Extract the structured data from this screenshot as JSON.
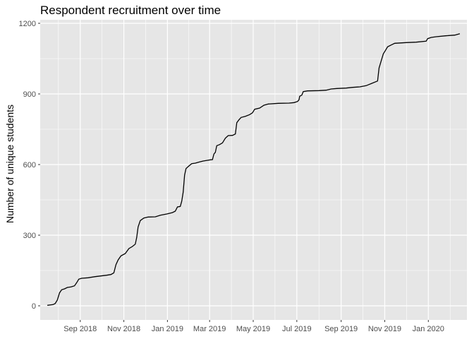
{
  "chart_data": {
    "type": "line",
    "title": "Respondent recruitment over time",
    "xlabel": "",
    "ylabel": "Number of unique students",
    "grid": true,
    "background_color": "#e6e6e6",
    "grid_color": "#ffffff",
    "line_color": "#000000",
    "xlim": [
      "2018-07-07",
      "2020-02-24"
    ],
    "ylim": [
      -60,
      1215
    ],
    "x_ticks": [
      {
        "date": "2018-09-01",
        "label": "Sep 2018"
      },
      {
        "date": "2018-11-01",
        "label": "Nov 2018"
      },
      {
        "date": "2019-01-01",
        "label": "Jan 2019"
      },
      {
        "date": "2019-03-01",
        "label": "Mar 2019"
      },
      {
        "date": "2019-05-01",
        "label": "May 2019"
      },
      {
        "date": "2019-07-01",
        "label": "Jul 2019"
      },
      {
        "date": "2019-09-01",
        "label": "Sep 2019"
      },
      {
        "date": "2019-11-01",
        "label": "Nov 2019"
      },
      {
        "date": "2020-01-01",
        "label": "Jan 2020"
      }
    ],
    "y_ticks": [
      {
        "value": 0,
        "label": "0"
      },
      {
        "value": 300,
        "label": "300"
      },
      {
        "value": 600,
        "label": "600"
      },
      {
        "value": 900,
        "label": "900"
      },
      {
        "value": 1200,
        "label": "1200"
      }
    ],
    "series": [
      {
        "name": "",
        "points": [
          [
            "2018-07-17",
            2
          ],
          [
            "2018-07-25",
            5
          ],
          [
            "2018-07-28",
            10
          ],
          [
            "2018-07-31",
            25
          ],
          [
            "2018-08-03",
            55
          ],
          [
            "2018-08-06",
            68
          ],
          [
            "2018-08-10",
            72
          ],
          [
            "2018-08-14",
            78
          ],
          [
            "2018-08-19",
            80
          ],
          [
            "2018-08-24",
            85
          ],
          [
            "2018-08-27",
            98
          ],
          [
            "2018-08-30",
            113
          ],
          [
            "2018-09-03",
            117
          ],
          [
            "2018-09-12",
            119
          ],
          [
            "2018-09-22",
            124
          ],
          [
            "2018-09-30",
            127
          ],
          [
            "2018-10-08",
            130
          ],
          [
            "2018-10-14",
            133
          ],
          [
            "2018-10-18",
            140
          ],
          [
            "2018-10-21",
            175
          ],
          [
            "2018-10-24",
            195
          ],
          [
            "2018-10-28",
            212
          ],
          [
            "2018-11-03",
            222
          ],
          [
            "2018-11-08",
            243
          ],
          [
            "2018-11-13",
            252
          ],
          [
            "2018-11-17",
            262
          ],
          [
            "2018-11-19",
            290
          ],
          [
            "2018-11-21",
            335
          ],
          [
            "2018-11-24",
            362
          ],
          [
            "2018-11-29",
            373
          ],
          [
            "2018-12-05",
            377
          ],
          [
            "2018-12-15",
            378
          ],
          [
            "2018-12-22",
            385
          ],
          [
            "2018-12-31",
            390
          ],
          [
            "2019-01-08",
            396
          ],
          [
            "2019-01-12",
            402
          ],
          [
            "2019-01-15",
            420
          ],
          [
            "2019-01-19",
            422
          ],
          [
            "2019-01-21",
            445
          ],
          [
            "2019-01-23",
            483
          ],
          [
            "2019-01-25",
            555
          ],
          [
            "2019-01-27",
            583
          ],
          [
            "2019-01-31",
            594
          ],
          [
            "2019-02-04",
            604
          ],
          [
            "2019-02-09",
            606
          ],
          [
            "2019-02-15",
            611
          ],
          [
            "2019-02-20",
            615
          ],
          [
            "2019-02-26",
            618
          ],
          [
            "2019-03-02",
            620
          ],
          [
            "2019-03-05",
            621
          ],
          [
            "2019-03-07",
            645
          ],
          [
            "2019-03-09",
            652
          ],
          [
            "2019-03-11",
            680
          ],
          [
            "2019-03-15",
            685
          ],
          [
            "2019-03-19",
            692
          ],
          [
            "2019-03-23",
            712
          ],
          [
            "2019-03-27",
            723
          ],
          [
            "2019-04-02",
            724
          ],
          [
            "2019-04-06",
            730
          ],
          [
            "2019-04-08",
            778
          ],
          [
            "2019-04-11",
            790
          ],
          [
            "2019-04-14",
            800
          ],
          [
            "2019-04-20",
            805
          ],
          [
            "2019-04-26",
            812
          ],
          [
            "2019-04-30",
            820
          ],
          [
            "2019-05-03",
            835
          ],
          [
            "2019-05-10",
            840
          ],
          [
            "2019-05-16",
            852
          ],
          [
            "2019-05-22",
            857
          ],
          [
            "2019-06-05",
            860
          ],
          [
            "2019-06-20",
            861
          ],
          [
            "2019-06-27",
            863
          ],
          [
            "2019-07-02",
            868
          ],
          [
            "2019-07-04",
            875
          ],
          [
            "2019-07-05",
            890
          ],
          [
            "2019-07-08",
            895
          ],
          [
            "2019-07-10",
            910
          ],
          [
            "2019-07-16",
            913
          ],
          [
            "2019-08-01",
            914
          ],
          [
            "2019-08-11",
            916
          ],
          [
            "2019-08-18",
            921
          ],
          [
            "2019-08-26",
            923
          ],
          [
            "2019-09-08",
            925
          ],
          [
            "2019-09-17",
            928
          ],
          [
            "2019-09-27",
            930
          ],
          [
            "2019-10-06",
            935
          ],
          [
            "2019-10-14",
            945
          ],
          [
            "2019-10-22",
            955
          ],
          [
            "2019-10-24",
            1010
          ],
          [
            "2019-10-27",
            1040
          ],
          [
            "2019-10-30",
            1070
          ],
          [
            "2019-11-02",
            1085
          ],
          [
            "2019-11-05",
            1100
          ],
          [
            "2019-11-10",
            1108
          ],
          [
            "2019-11-15",
            1115
          ],
          [
            "2019-12-01",
            1118
          ],
          [
            "2019-12-15",
            1120
          ],
          [
            "2019-12-29",
            1124
          ],
          [
            "2019-12-31",
            1135
          ],
          [
            "2020-01-05",
            1140
          ],
          [
            "2020-01-12",
            1143
          ],
          [
            "2020-01-25",
            1147
          ],
          [
            "2020-02-07",
            1150
          ],
          [
            "2020-02-14",
            1156
          ]
        ]
      }
    ]
  }
}
